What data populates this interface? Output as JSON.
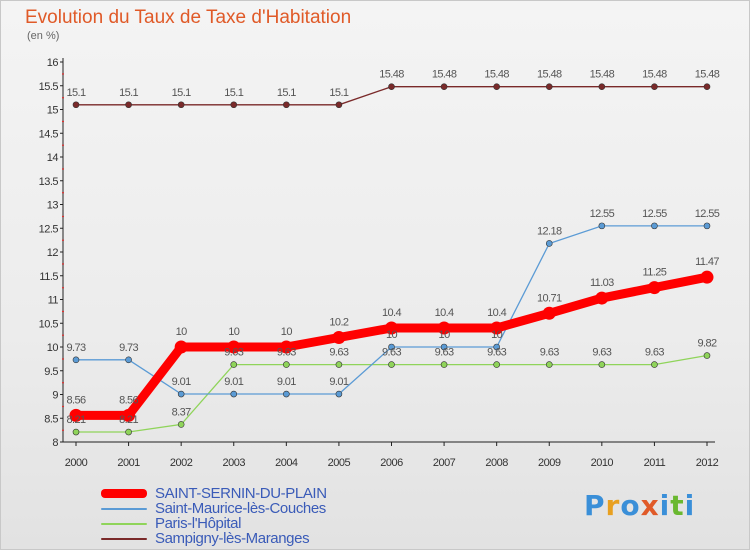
{
  "title": "Evolution du Taux de Taxe d'Habitation",
  "subtitle": "(en %)",
  "logo_text": "Proxiti",
  "chart_data": {
    "type": "line",
    "x": [
      "2000",
      "2001",
      "2002",
      "2003",
      "2004",
      "2005",
      "2006",
      "2007",
      "2008",
      "2009",
      "2010",
      "2011",
      "2012"
    ],
    "y_ticks": [
      "8",
      "8.5",
      "9",
      "9.5",
      "10",
      "10.5",
      "11",
      "11.5",
      "12",
      "12.5",
      "13",
      "13.5",
      "14",
      "14.5",
      "15",
      "15.5",
      "16"
    ],
    "ylim": [
      8,
      16
    ],
    "grid": false,
    "legend_position": "bottom",
    "series": [
      {
        "name": "SAINT-SERNIN-DU-PLAIN",
        "color": "#ff0000",
        "emphasis": true,
        "values": [
          8.56,
          8.56,
          10,
          10,
          10,
          10.2,
          10.4,
          10.4,
          10.4,
          10.71,
          11.03,
          11.25,
          11.47
        ],
        "labels": [
          "8.56",
          "8.56",
          "10",
          "10",
          "10",
          "10.2",
          "10.4",
          "10.4",
          "10.4",
          "10.71",
          "11.03",
          "11.25",
          "11.47"
        ]
      },
      {
        "name": "Saint-Maurice-lès-Couches",
        "color": "#5b9bd5",
        "values": [
          9.73,
          9.73,
          9.01,
          9.01,
          9.01,
          9.01,
          10,
          10,
          10,
          12.18,
          12.55,
          12.55,
          12.55
        ],
        "labels": [
          "9.73",
          "9.73",
          "9.01",
          "9.01",
          "9.01",
          "9.01",
          "10",
          "10",
          "10",
          "12.18",
          "12.55",
          "12.55",
          "12.55"
        ]
      },
      {
        "name": "Paris-l'Hôpital",
        "color": "#8fd45a",
        "values": [
          8.21,
          8.21,
          8.37,
          9.63,
          9.63,
          9.63,
          9.63,
          9.63,
          9.63,
          9.63,
          9.63,
          9.63,
          9.82
        ],
        "labels": [
          "8.21",
          "8.21",
          "8.37",
          "9.63",
          "9.63",
          "9.63",
          "9.63",
          "9.63",
          "9.63",
          "9.63",
          "9.63",
          "9.63",
          "9.82"
        ]
      },
      {
        "name": "Sampigny-lès-Maranges",
        "color": "#7a2a2a",
        "values": [
          15.1,
          15.1,
          15.1,
          15.1,
          15.1,
          15.1,
          15.48,
          15.48,
          15.48,
          15.48,
          15.48,
          15.48,
          15.48
        ],
        "labels": [
          "15.1",
          "15.1",
          "15.1",
          "15.1",
          "15.1",
          "15.1",
          "15.48",
          "15.48",
          "15.48",
          "15.48",
          "15.48",
          "15.48",
          "15.48"
        ]
      }
    ]
  }
}
